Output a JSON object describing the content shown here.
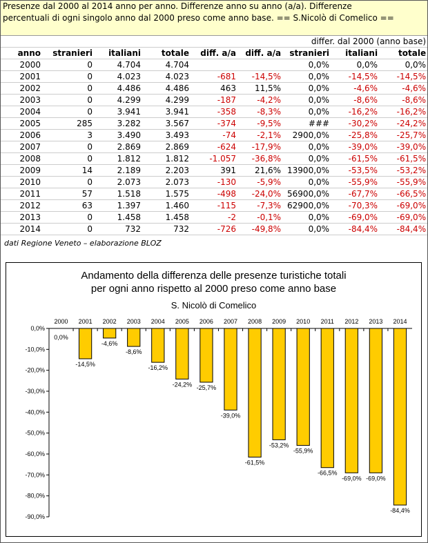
{
  "header": {
    "line1": "Presenze dal 2000 al 2014 anno per anno. Differenze anno su anno (a/a). Differenze",
    "line2": "percentuali di ogni singolo anno dal 2000 preso come anno base. == S.Nicolò di Comelico =="
  },
  "table": {
    "group_header": "differ. dal 2000 (anno base)",
    "columns": [
      "anno",
      "stranieri",
      "italiani",
      "totale",
      "diff. a/a",
      "diff. a/a",
      "stranieri",
      "italiani",
      "totale"
    ],
    "rows": [
      [
        "2000",
        "0",
        "4.704",
        "4.704",
        "",
        "",
        "0,0%",
        "0,0%",
        "0,0%"
      ],
      [
        "2001",
        "0",
        "4.023",
        "4.023",
        "-681",
        "-14,5%",
        "0,0%",
        "-14,5%",
        "-14,5%"
      ],
      [
        "2002",
        "0",
        "4.486",
        "4.486",
        "463",
        "11,5%",
        "0,0%",
        "-4,6%",
        "-4,6%"
      ],
      [
        "2003",
        "0",
        "4.299",
        "4.299",
        "-187",
        "-4,2%",
        "0,0%",
        "-8,6%",
        "-8,6%"
      ],
      [
        "2004",
        "0",
        "3.941",
        "3.941",
        "-358",
        "-8,3%",
        "0,0%",
        "-16,2%",
        "-16,2%"
      ],
      [
        "2005",
        "285",
        "3.282",
        "3.567",
        "-374",
        "-9,5%",
        "###",
        "-30,2%",
        "-24,2%"
      ],
      [
        "2006",
        "3",
        "3.490",
        "3.493",
        "-74",
        "-2,1%",
        "2900,0%",
        "-25,8%",
        "-25,7%"
      ],
      [
        "2007",
        "0",
        "2.869",
        "2.869",
        "-624",
        "-17,9%",
        "0,0%",
        "-39,0%",
        "-39,0%"
      ],
      [
        "2008",
        "0",
        "1.812",
        "1.812",
        "-1.057",
        "-36,8%",
        "0,0%",
        "-61,5%",
        "-61,5%"
      ],
      [
        "2009",
        "14",
        "2.189",
        "2.203",
        "391",
        "21,6%",
        "13900,0%",
        "-53,5%",
        "-53,2%"
      ],
      [
        "2010",
        "0",
        "2.073",
        "2.073",
        "-130",
        "-5,9%",
        "0,0%",
        "-55,9%",
        "-55,9%"
      ],
      [
        "2011",
        "57",
        "1.518",
        "1.575",
        "-498",
        "-24,0%",
        "56900,0%",
        "-67,7%",
        "-66,5%"
      ],
      [
        "2012",
        "63",
        "1.397",
        "1.460",
        "-115",
        "-7,3%",
        "62900,0%",
        "-70,3%",
        "-69,0%"
      ],
      [
        "2013",
        "0",
        "1.458",
        "1.458",
        "-2",
        "-0,1%",
        "0,0%",
        "-69,0%",
        "-69,0%"
      ],
      [
        "2014",
        "0",
        "732",
        "732",
        "-726",
        "-49,8%",
        "0,0%",
        "-84,4%",
        "-84,4%"
      ]
    ]
  },
  "source": "dati Regione Veneto – elaborazione BLOZ",
  "colors": {
    "header_bg": "#ffffcc",
    "negative": "#cc0000",
    "bar_fill": "#ffcc00"
  },
  "chart_data": {
    "type": "bar",
    "title_line1": "Andamento della differenza delle presenze turistiche totali",
    "title_line2": "per ogni anno rispetto al 2000 preso come anno base",
    "subtitle": "S. Nicolò di Comelico",
    "categories": [
      "2000",
      "2001",
      "2002",
      "2003",
      "2004",
      "2005",
      "2006",
      "2007",
      "2008",
      "2009",
      "2010",
      "2011",
      "2012",
      "2013",
      "2014"
    ],
    "values": [
      0.0,
      -14.5,
      -4.6,
      -8.6,
      -16.2,
      -24.2,
      -25.7,
      -39.0,
      -61.5,
      -53.2,
      -55.9,
      -66.5,
      -69.0,
      -69.0,
      -84.4
    ],
    "labels": [
      "0,0%",
      "-14,5%",
      "-4,6%",
      "-8,6%",
      "-16,2%",
      "-24,2%",
      "-25,7%",
      "-39,0%",
      "-61,5%",
      "-53,2%",
      "-55,9%",
      "-66,5%",
      "-69,0%",
      "-69,0%",
      "-84,4%"
    ],
    "yticks": [
      "0,0%",
      "-10,0%",
      "-20,0%",
      "-30,0%",
      "-40,0%",
      "-50,0%",
      "-60,0%",
      "-70,0%",
      "-80,0%",
      "-90,0%"
    ],
    "ylim": [
      -90,
      0
    ],
    "grid": false,
    "legend": "none"
  }
}
